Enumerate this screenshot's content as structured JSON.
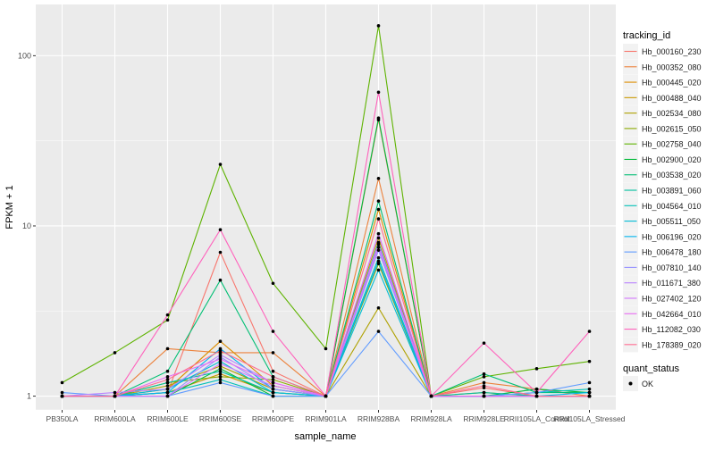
{
  "chart_data": {
    "type": "line",
    "xlabel": "sample_name",
    "ylabel": "FPKM + 1",
    "y_scale": "log10",
    "y_ticks": [
      1,
      10,
      100
    ],
    "y_tick_labels": [
      "1",
      "10",
      "100"
    ],
    "ylim": [
      0.83,
      200
    ],
    "grid": true,
    "legend_position": "right",
    "categories": [
      "PB350LA",
      "RRIM600LA",
      "RRIM600LE",
      "RRIM600SE",
      "RRIM600PE",
      "RRIM901LA",
      "RRIM928BA",
      "RRIM928LA",
      "RRIM928LE",
      "RRII105LA_Control",
      "RRII105LA_Stressed"
    ],
    "legend": {
      "title": "tracking_id",
      "quant_title": "quant_status",
      "quant_label": "OK"
    },
    "series": [
      {
        "name": "Hb_000160_230",
        "color": "#F8766D",
        "values": [
          1.0,
          1.0,
          1.05,
          7.0,
          1.4,
          1.0,
          42.0,
          1.0,
          1.12,
          1.0,
          1.0
        ]
      },
      {
        "name": "Hb_000352_080",
        "color": "#EC823C",
        "values": [
          1.0,
          1.0,
          1.9,
          1.8,
          1.8,
          1.0,
          19.0,
          1.0,
          1.2,
          1.1,
          1.0
        ]
      },
      {
        "name": "Hb_000445_020",
        "color": "#DD8D00",
        "values": [
          1.0,
          1.0,
          1.1,
          2.1,
          1.15,
          1.0,
          12.5,
          1.0,
          1.05,
          1.0,
          1.0
        ]
      },
      {
        "name": "Hb_000488_040",
        "color": "#C99800",
        "values": [
          1.0,
          1.0,
          1.05,
          1.35,
          1.05,
          1.0,
          8.5,
          1.0,
          1.0,
          1.0,
          1.0
        ]
      },
      {
        "name": "Hb_002534_080",
        "color": "#AFA100",
        "values": [
          1.0,
          1.0,
          1.15,
          1.5,
          1.1,
          1.0,
          3.3,
          1.0,
          1.0,
          1.0,
          1.0
        ]
      },
      {
        "name": "Hb_002615_050",
        "color": "#8DAB00",
        "values": [
          1.0,
          1.0,
          1.2,
          1.3,
          1.25,
          1.0,
          6.0,
          1.0,
          1.0,
          1.0,
          1.0
        ]
      },
      {
        "name": "Hb_002758_040",
        "color": "#5EB300",
        "values": [
          1.2,
          1.8,
          2.8,
          23.0,
          4.6,
          1.9,
          150.0,
          1.0,
          1.3,
          1.45,
          1.6
        ]
      },
      {
        "name": "Hb_002900_020",
        "color": "#00BA38",
        "values": [
          1.0,
          1.0,
          1.0,
          1.45,
          1.0,
          1.0,
          43.0,
          1.0,
          1.0,
          1.1,
          1.05
        ]
      },
      {
        "name": "Hb_003538_020",
        "color": "#00BF74",
        "values": [
          1.0,
          1.0,
          1.4,
          4.8,
          1.3,
          1.0,
          14.0,
          1.0,
          1.35,
          1.05,
          1.05
        ]
      },
      {
        "name": "Hb_003891_060",
        "color": "#00C19F",
        "values": [
          1.0,
          1.0,
          1.2,
          1.4,
          1.05,
          1.0,
          8.0,
          1.0,
          1.05,
          1.0,
          1.0
        ]
      },
      {
        "name": "Hb_004564_010",
        "color": "#00C0B8",
        "values": [
          1.0,
          1.0,
          1.05,
          1.25,
          1.0,
          1.0,
          6.5,
          1.0,
          1.0,
          1.05,
          1.1
        ]
      },
      {
        "name": "Hb_005511_050",
        "color": "#00BCD6",
        "values": [
          1.0,
          1.0,
          1.1,
          1.6,
          1.05,
          1.0,
          5.5,
          1.0,
          1.0,
          1.0,
          1.0
        ]
      },
      {
        "name": "Hb_006196_020",
        "color": "#00B5EE",
        "values": [
          1.0,
          1.0,
          1.05,
          1.9,
          1.1,
          1.0,
          6.2,
          1.0,
          1.0,
          1.0,
          1.05
        ]
      },
      {
        "name": "Hb_006478_180",
        "color": "#619CFF",
        "values": [
          1.05,
          1.0,
          1.0,
          1.2,
          1.0,
          1.0,
          2.4,
          1.0,
          1.0,
          1.05,
          1.2
        ]
      },
      {
        "name": "Hb_007810_140",
        "color": "#9590FF",
        "values": [
          1.0,
          1.0,
          1.0,
          1.7,
          1.1,
          1.0,
          7.2,
          1.0,
          1.0,
          1.0,
          1.0
        ]
      },
      {
        "name": "Hb_011671_380",
        "color": "#B983FF",
        "values": [
          1.0,
          1.05,
          1.1,
          1.75,
          1.2,
          1.0,
          7.5,
          1.0,
          1.0,
          1.0,
          1.0
        ]
      },
      {
        "name": "Hb_027402_120",
        "color": "#D376FF",
        "values": [
          1.0,
          1.0,
          1.0,
          1.55,
          1.15,
          1.0,
          9.0,
          1.0,
          1.0,
          1.0,
          1.0
        ]
      },
      {
        "name": "Hb_042664_010",
        "color": "#E76BF3",
        "values": [
          1.0,
          1.0,
          1.3,
          1.65,
          1.2,
          1.0,
          7.8,
          1.0,
          1.0,
          1.0,
          1.0
        ]
      },
      {
        "name": "Hb_112082_030",
        "color": "#FF62BC",
        "values": [
          1.0,
          1.0,
          3.0,
          9.5,
          2.4,
          1.0,
          61.0,
          1.0,
          2.05,
          1.05,
          2.4
        ]
      },
      {
        "name": "Hb_178389_020",
        "color": "#FF6C91",
        "values": [
          1.0,
          1.0,
          1.25,
          1.85,
          1.3,
          1.0,
          11.0,
          1.0,
          1.15,
          1.0,
          1.0
        ]
      }
    ]
  }
}
